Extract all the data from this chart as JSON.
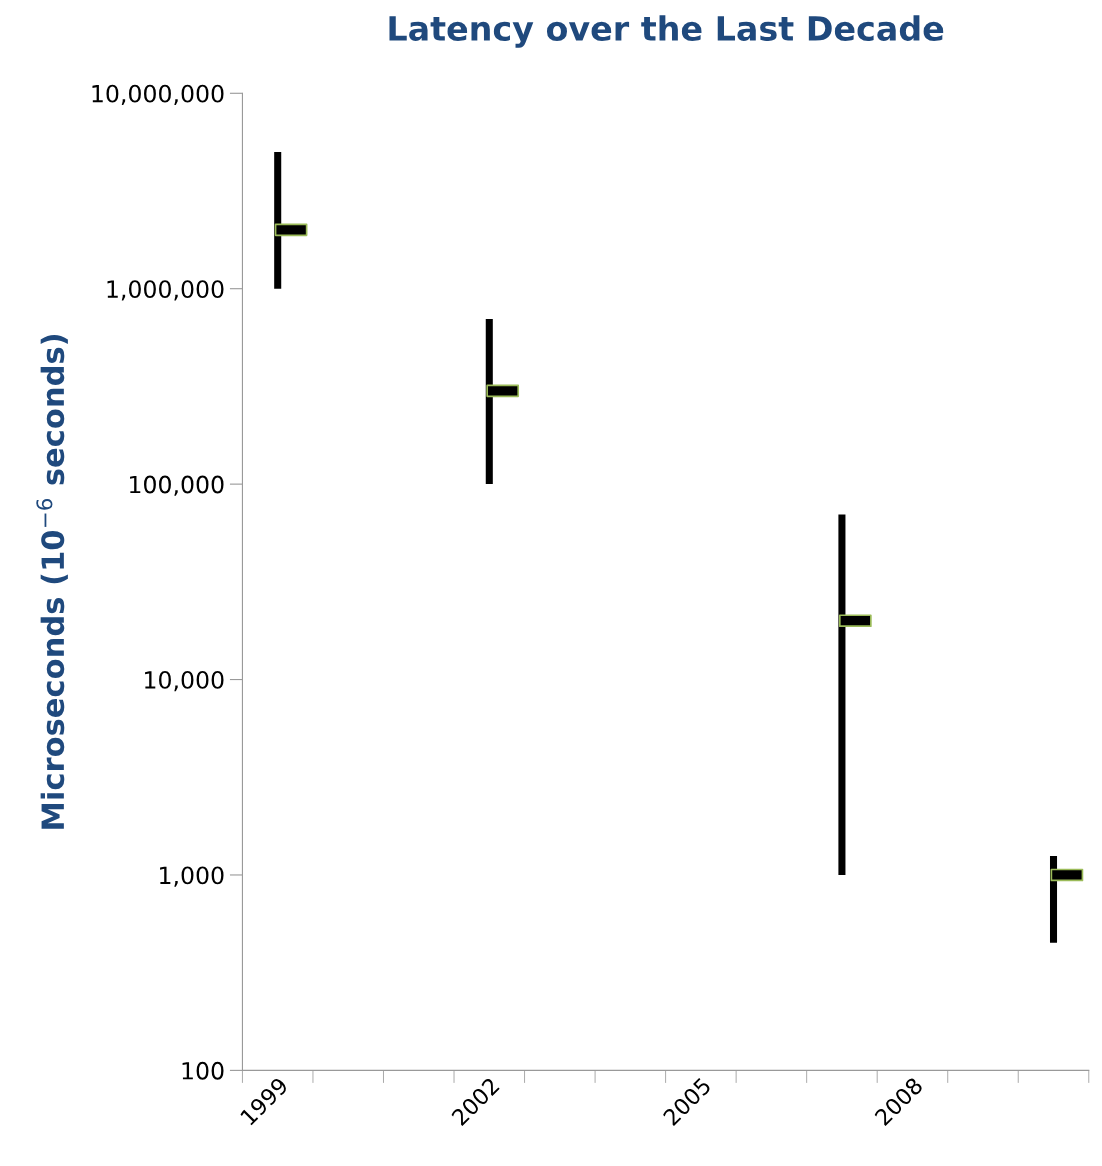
{
  "chart_data": {
    "type": "bar",
    "title": "Latency over the Last Decade",
    "ylabel": "Microseconds (10$^{−6}$ seconds)",
    "categories": [
      "1999",
      null,
      null,
      "2002",
      null,
      null,
      "2005",
      null,
      null,
      "2008",
      null,
      null
    ],
    "series": [
      {
        "color": "#000000",
        "values": [
          4000000,
          null,
          null,
          600000,
          null,
          null,
          null,
          null,
          69000,
          null,
          null,
          800
        ],
        "base": [
          1000000,
          null,
          null,
          100000,
          null,
          null,
          null,
          null,
          1000,
          null,
          null,
          450
        ]
      },
      {
        "type": "scatter",
        "color": "#000000",
        "marker": "square",
        "values": [
          2000000,
          null,
          null,
          300000,
          null,
          null,
          null,
          null,
          20000,
          null,
          null,
          1000
        ]
      }
    ],
    "log": "y",
    "ylim": [
      100,
      10000000
    ],
    "yticks": [
      {
        "value": 100,
        "label": "100"
      },
      {
        "value": 1000,
        "label": "1,000"
      },
      {
        "value": 10000,
        "label": "10,000"
      },
      {
        "value": 100000,
        "label": "100,000"
      },
      {
        "value": 1000000,
        "label": "1,000,000"
      },
      {
        "value": 10000000,
        "label": "10,000,000"
      }
    ],
    "grid": false,
    "legend": false
  }
}
